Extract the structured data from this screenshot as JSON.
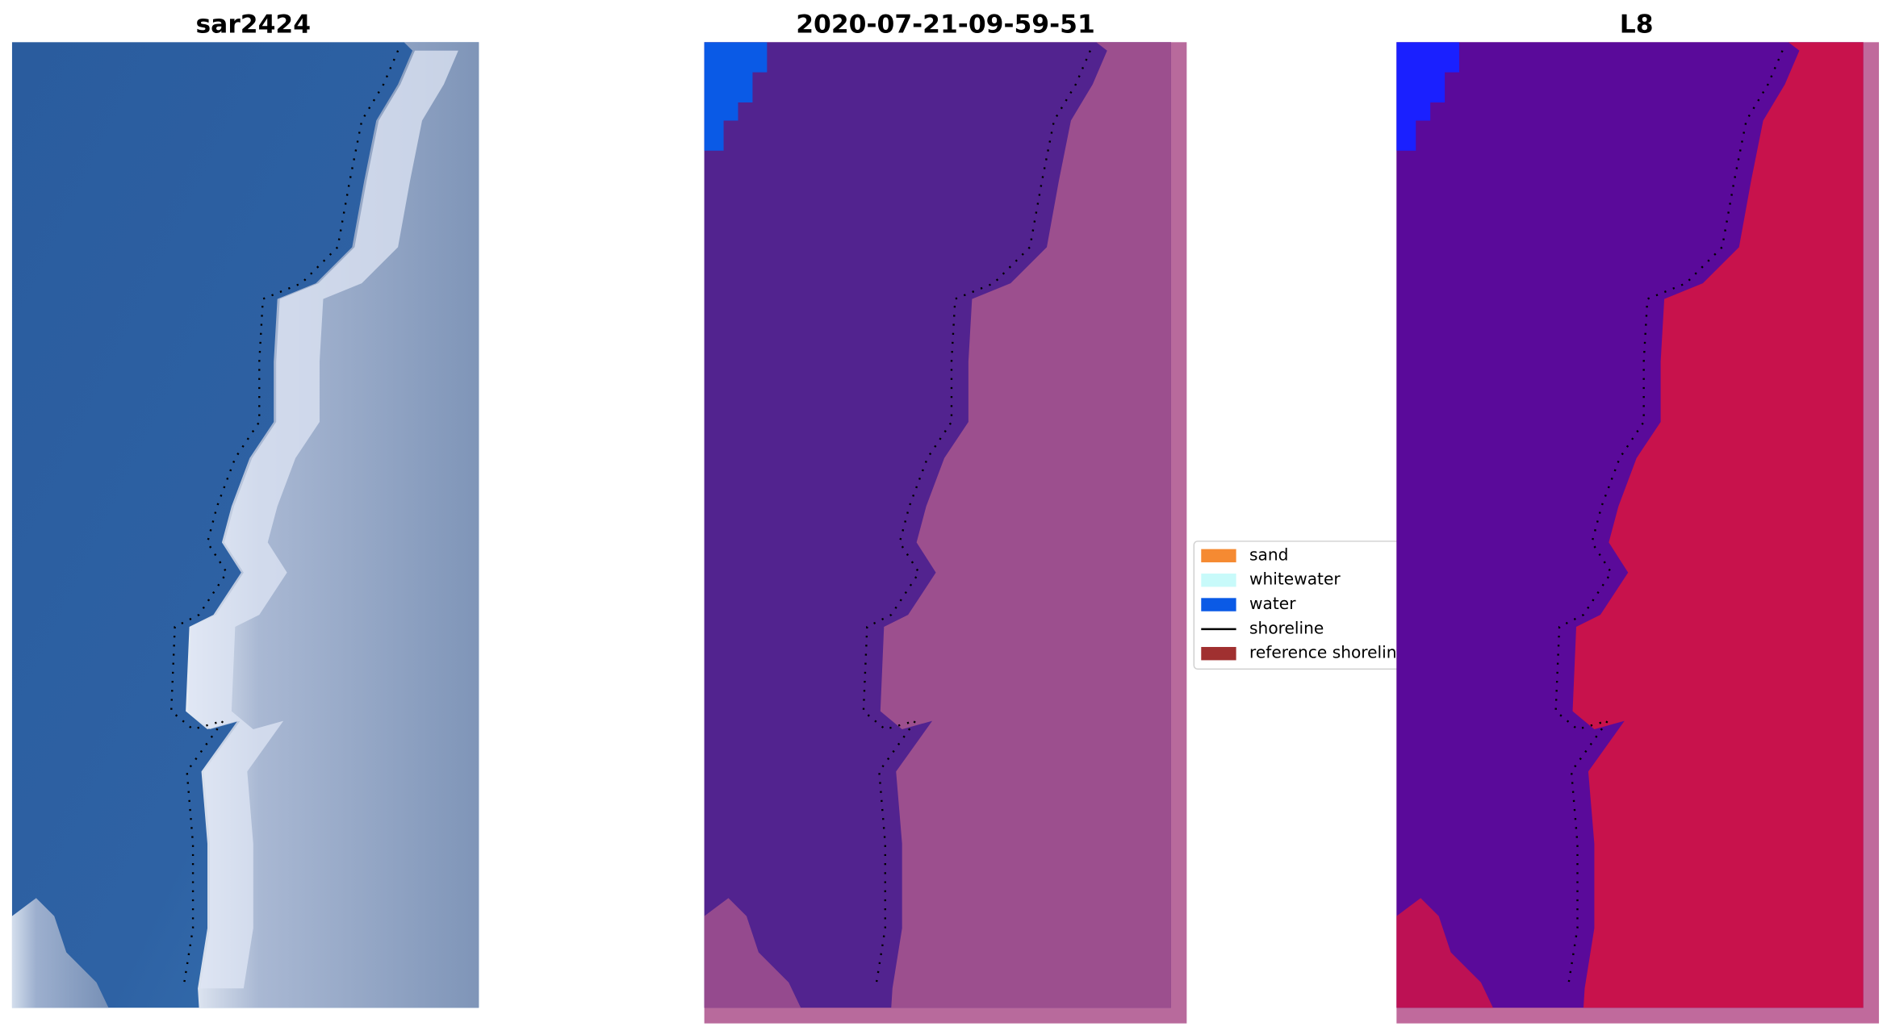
{
  "panels": [
    {
      "title": "sar2424"
    },
    {
      "title": "2020-07-21-09-59-51"
    },
    {
      "title": "L8"
    }
  ],
  "legend": {
    "items": [
      {
        "label": "sand",
        "color": "#f58a32",
        "marker": "patch"
      },
      {
        "label": "whitewater",
        "color": "#c8fafa",
        "marker": "patch"
      },
      {
        "label": "water",
        "color": "#0a5ae6",
        "marker": "patch"
      },
      {
        "label": "shoreline",
        "color": "#000000",
        "marker": "line"
      },
      {
        "label": "reference shoreline",
        "color": "#a03030",
        "marker": "patch"
      }
    ]
  }
}
